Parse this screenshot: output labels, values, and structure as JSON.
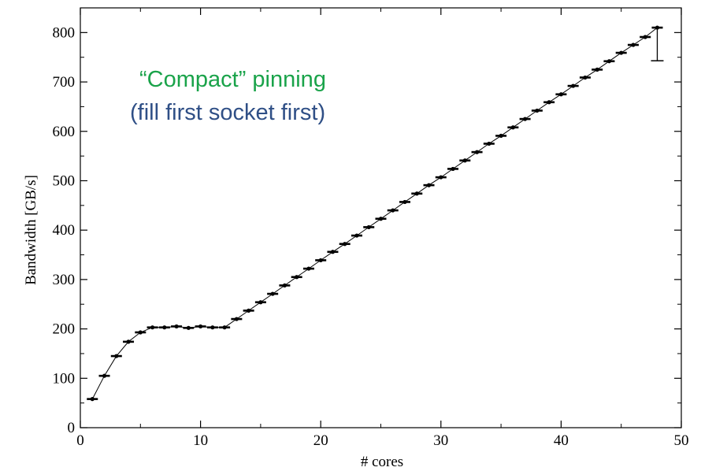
{
  "chart_data": {
    "type": "line",
    "title": "",
    "xlabel": "# cores",
    "ylabel": "Bandwidth [GB/s]",
    "xlim": [
      0,
      50
    ],
    "ylim": [
      0,
      850
    ],
    "xticks": [
      0,
      10,
      20,
      30,
      40,
      50
    ],
    "yticks": [
      0,
      100,
      200,
      300,
      400,
      500,
      600,
      700,
      800
    ],
    "grid": false,
    "annotations": [
      {
        "text": "“Compact” pinning",
        "color": "#1aa34a"
      },
      {
        "text": "(fill first socket first)",
        "color": "#2f4f86"
      }
    ],
    "series": [
      {
        "x": [
          1,
          2,
          3,
          4,
          5,
          6,
          7,
          8,
          9,
          10,
          11,
          12,
          13,
          14,
          15,
          16,
          17,
          18,
          19,
          20,
          21,
          22,
          23,
          24,
          25,
          26,
          27,
          28,
          29,
          30,
          31,
          32,
          33,
          34,
          35,
          36,
          37,
          38,
          39,
          40,
          41,
          42,
          43,
          44,
          45,
          46,
          47,
          48
        ],
        "y": [
          58,
          105,
          145,
          174,
          193,
          203,
          203,
          205,
          202,
          205,
          203,
          203,
          220,
          237,
          254,
          271,
          288,
          305,
          322,
          339,
          356,
          372,
          389,
          406,
          423,
          440,
          457,
          474,
          491,
          507,
          524,
          541,
          558,
          575,
          591,
          608,
          625,
          642,
          659,
          675,
          692,
          709,
          725,
          742,
          759,
          775,
          791,
          810
        ],
        "error_low": [
          null,
          null,
          null,
          null,
          null,
          null,
          null,
          null,
          null,
          null,
          null,
          null,
          null,
          null,
          null,
          null,
          null,
          null,
          null,
          null,
          null,
          null,
          null,
          null,
          null,
          null,
          null,
          null,
          null,
          null,
          null,
          null,
          null,
          null,
          null,
          null,
          null,
          null,
          null,
          null,
          null,
          null,
          null,
          null,
          null,
          null,
          null,
          743
        ],
        "color": "#000000"
      }
    ]
  }
}
